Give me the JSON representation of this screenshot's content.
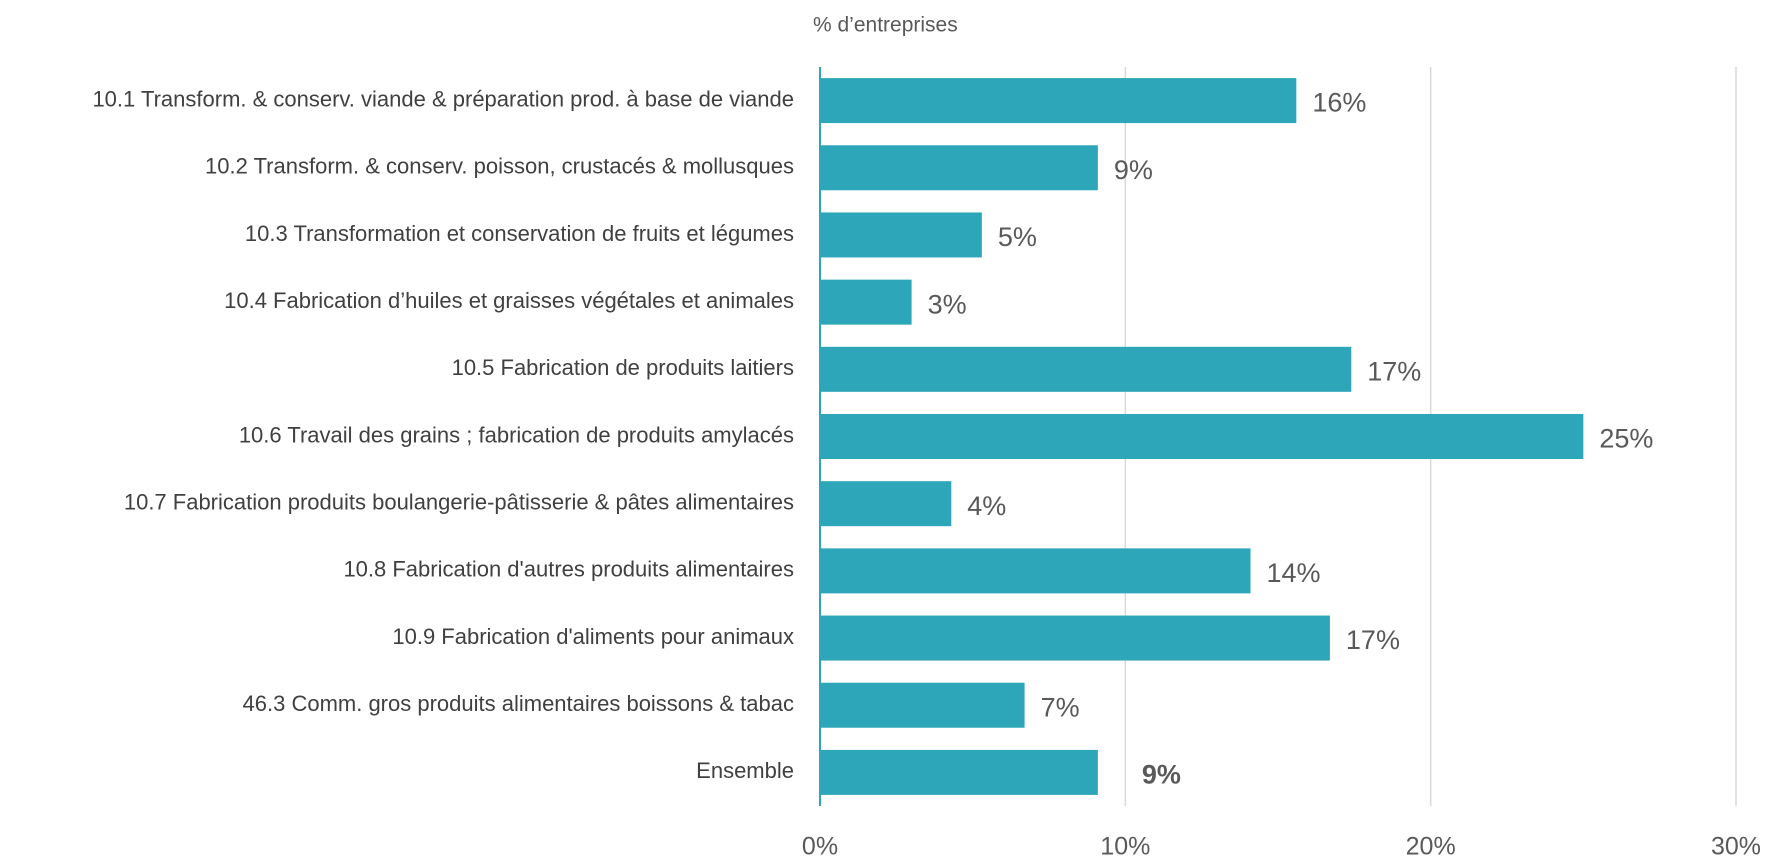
{
  "chart_data": {
    "type": "bar",
    "orientation": "horizontal",
    "axis_title": "% d’entreprises",
    "categories": [
      "10.1 Transform. & conserv. viande & préparation prod. à base de viande",
      "10.2 Transform. & conserv. poisson, crustacés & mollusques",
      "10.3 Transformation et conservation de fruits et légumes",
      "10.4 Fabrication d’huiles et graisses végétales et animales",
      "10.5 Fabrication de produits laitiers",
      "10.6 Travail des grains ; fabrication de produits amylacés",
      "10.7 Fabrication produits boulangerie-pâtisserie & pâtes alimentaires",
      "10.8 Fabrication d'autres produits alimentaires",
      "10.9 Fabrication d'aliments pour animaux",
      "46.3 Comm. gros produits alimentaires boissons & tabac",
      "Ensemble"
    ],
    "values": [
      15.6,
      9.1,
      5.3,
      3.0,
      17.4,
      25.0,
      4.3,
      14.1,
      16.7,
      6.7,
      9.1
    ],
    "value_labels": [
      "16%",
      "9%",
      "5%",
      "3%",
      "17%",
      "25%",
      "4%",
      "14%",
      "17%",
      "7%",
      "9%"
    ],
    "color": "#2ca6b8",
    "xlim": [
      0,
      30
    ],
    "xticks": [
      {
        "value": 0,
        "label": "0%"
      },
      {
        "value": 10,
        "label": "10%"
      },
      {
        "value": 20,
        "label": "20%"
      },
      {
        "value": 30,
        "label": "30%"
      }
    ],
    "grid": true
  }
}
